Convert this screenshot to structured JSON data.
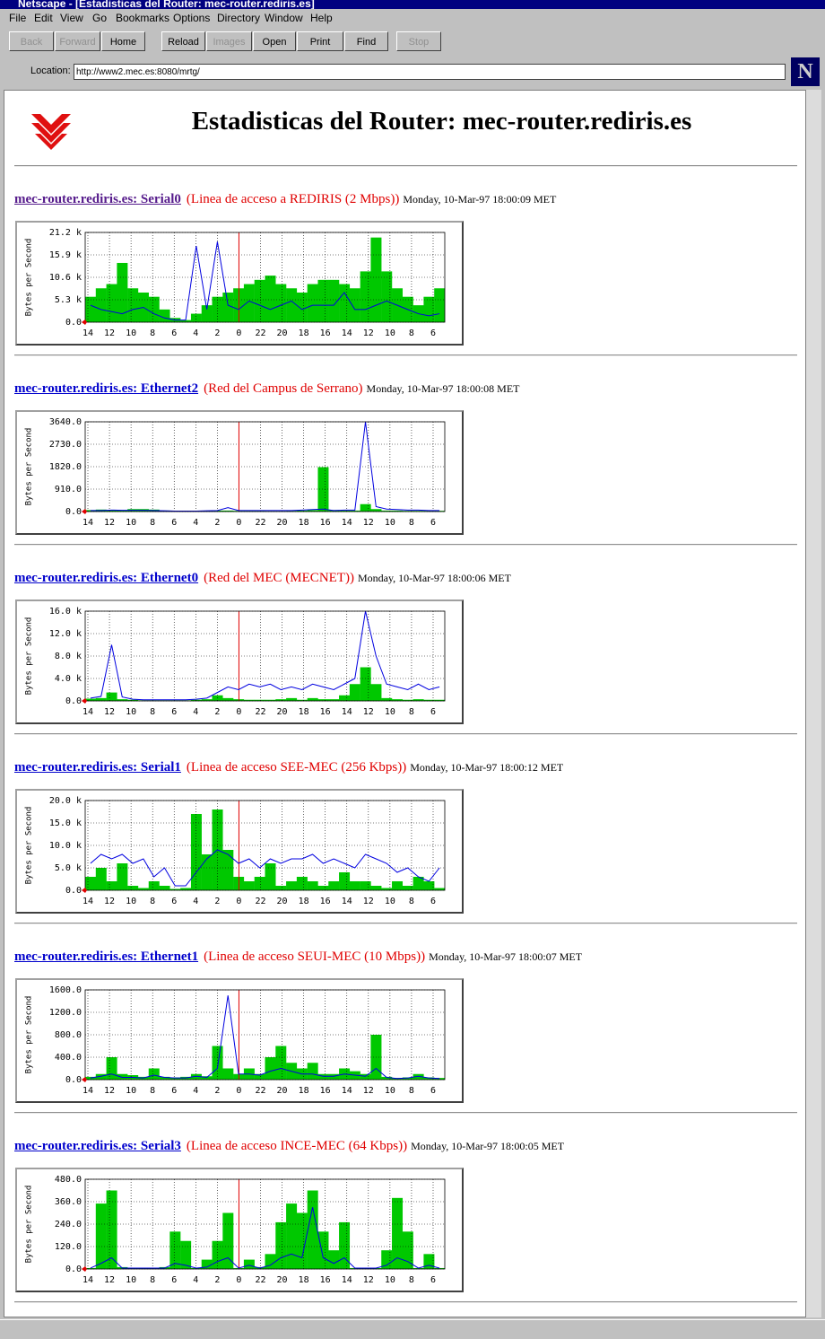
{
  "window": {
    "title": "Netscape - [Estadisticas del Router: mec-router.rediris.es]"
  },
  "menu": [
    "File",
    "Edit",
    "View",
    "Go",
    "Bookmarks",
    "Options",
    "Directory",
    "Window",
    "Help"
  ],
  "toolbar": [
    {
      "label": "Back",
      "enabled": false
    },
    {
      "label": "Forward",
      "enabled": false
    },
    {
      "label": "Home",
      "enabled": true
    },
    {
      "label": "Reload",
      "enabled": true
    },
    {
      "label": "Images",
      "enabled": false
    },
    {
      "label": "Open",
      "enabled": true
    },
    {
      "label": "Print",
      "enabled": true
    },
    {
      "label": "Find",
      "enabled": true
    },
    {
      "label": "Stop",
      "enabled": false
    }
  ],
  "location": {
    "label": "Location:",
    "url": "http://www2.mec.es:8080/mrtg/"
  },
  "page": {
    "heading": "Estadisticas del Router: mec-router.rediris.es",
    "y_axis_label": "Bytes per Second",
    "x_labels": [
      "14",
      "12",
      "10",
      "8",
      "6",
      "4",
      "2",
      "0",
      "22",
      "20",
      "18",
      "16",
      "14",
      "12",
      "10",
      "8",
      "6"
    ]
  },
  "chart_data": [
    {
      "type": "bar",
      "title": "mec-router.rediris.es: Serial0",
      "subtitle": "(Linea de acceso a REDIRIS (2 Mbps))",
      "date": "Monday, 10-Mar-97 18:00:09 MET",
      "ylim": [
        0,
        21200
      ],
      "yticks": [
        {
          "value": 0,
          "label": "0.0"
        },
        {
          "value": 5300,
          "label": "5.3 k"
        },
        {
          "value": 10600,
          "label": "10.6 k"
        },
        {
          "value": 15900,
          "label": "15.9 k"
        },
        {
          "value": 21200,
          "label": "21.2 k"
        }
      ],
      "grid": true,
      "series": [
        {
          "kind": "bar",
          "color": "#00c800",
          "values": [
            6000,
            8000,
            9000,
            14000,
            8000,
            7000,
            6000,
            3000,
            1000,
            500,
            2000,
            4000,
            6000,
            7000,
            8000,
            9000,
            10000,
            11000,
            9000,
            8000,
            7000,
            9000,
            10000,
            10000,
            9000,
            8000,
            12000,
            20000,
            12000,
            8000,
            6000,
            4000,
            6000,
            8000
          ]
        },
        {
          "kind": "line",
          "color": "#0000e0",
          "values": [
            4000,
            3000,
            2500,
            2000,
            3000,
            3500,
            2000,
            1000,
            500,
            500,
            18000,
            3000,
            19000,
            4000,
            3000,
            5000,
            4000,
            3000,
            4000,
            5000,
            3000,
            4000,
            4000,
            4000,
            7000,
            3000,
            3000,
            4000,
            5000,
            4000,
            3000,
            2000,
            1500,
            2000
          ]
        }
      ]
    },
    {
      "type": "bar",
      "title": "mec-router.rediris.es: Ethernet2",
      "subtitle": "(Red del Campus de Serrano)",
      "date": "Monday, 10-Mar-97 18:00:08 MET",
      "ylim": [
        0,
        3640
      ],
      "yticks": [
        {
          "value": 0,
          "label": "0.0"
        },
        {
          "value": 910,
          "label": "910.0"
        },
        {
          "value": 1820,
          "label": "1820.0"
        },
        {
          "value": 2730,
          "label": "2730.0"
        },
        {
          "value": 3640,
          "label": "3640.0"
        }
      ],
      "grid": true,
      "series": [
        {
          "kind": "bar",
          "color": "#00c800",
          "values": [
            60,
            80,
            60,
            60,
            100,
            100,
            80,
            40,
            30,
            20,
            20,
            30,
            40,
            40,
            30,
            30,
            30,
            20,
            20,
            30,
            40,
            60,
            1800,
            60,
            40,
            40,
            300,
            100,
            40,
            40,
            30,
            30,
            30,
            30
          ]
        },
        {
          "kind": "line",
          "color": "#0000e0",
          "values": [
            40,
            40,
            60,
            50,
            50,
            50,
            40,
            30,
            20,
            20,
            20,
            30,
            40,
            160,
            40,
            40,
            40,
            40,
            40,
            40,
            60,
            80,
            100,
            40,
            60,
            60,
            3640,
            200,
            100,
            80,
            60,
            60,
            40,
            40
          ]
        }
      ]
    },
    {
      "type": "bar",
      "title": "mec-router.rediris.es: Ethernet0",
      "subtitle": "(Red del MEC (MECNET))",
      "date": "Monday, 10-Mar-97 18:00:06 MET",
      "ylim": [
        0,
        16000
      ],
      "yticks": [
        {
          "value": 0,
          "label": "0.0"
        },
        {
          "value": 4000,
          "label": "4.0 k"
        },
        {
          "value": 8000,
          "label": "8.0 k"
        },
        {
          "value": 12000,
          "label": "12.0 k"
        },
        {
          "value": 16000,
          "label": "16.0 k"
        }
      ],
      "grid": true,
      "series": [
        {
          "kind": "bar",
          "color": "#00c800",
          "values": [
            400,
            500,
            1500,
            300,
            200,
            100,
            100,
            100,
            100,
            100,
            200,
            300,
            1000,
            500,
            300,
            200,
            200,
            200,
            300,
            500,
            200,
            500,
            300,
            300,
            1000,
            3000,
            6000,
            3000,
            500,
            300,
            200,
            300,
            200,
            200
          ]
        },
        {
          "kind": "line",
          "color": "#0000e0",
          "values": [
            500,
            800,
            10000,
            700,
            300,
            200,
            200,
            200,
            200,
            200,
            300,
            500,
            1500,
            2500,
            2000,
            3000,
            2500,
            3000,
            2000,
            2500,
            2000,
            3000,
            2500,
            2000,
            3000,
            4000,
            16000,
            8000,
            3000,
            2500,
            2000,
            3000,
            2000,
            2500
          ]
        }
      ]
    },
    {
      "type": "bar",
      "title": "mec-router.rediris.es: Serial1",
      "subtitle": "(Linea de acceso SEE-MEC (256 Kbps))",
      "date": "Monday, 10-Mar-97 18:00:12 MET",
      "ylim": [
        0,
        20000
      ],
      "yticks": [
        {
          "value": 0,
          "label": "0.0"
        },
        {
          "value": 5000,
          "label": "5.0 k"
        },
        {
          "value": 10000,
          "label": "10.0 k"
        },
        {
          "value": 15000,
          "label": "15.0 k"
        },
        {
          "value": 20000,
          "label": "20.0 k"
        }
      ],
      "grid": true,
      "series": [
        {
          "kind": "bar",
          "color": "#00c800",
          "values": [
            3000,
            5000,
            2000,
            6000,
            1000,
            500,
            2000,
            1000,
            300,
            500,
            17000,
            8000,
            18000,
            9000,
            3000,
            2000,
            3000,
            6000,
            1000,
            2000,
            3000,
            2000,
            1000,
            2000,
            4000,
            2000,
            2000,
            1000,
            500,
            2000,
            1000,
            3000,
            2000,
            500
          ]
        },
        {
          "kind": "line",
          "color": "#0000e0",
          "values": [
            6000,
            8000,
            7000,
            8000,
            6000,
            7000,
            3000,
            5000,
            1000,
            1000,
            4000,
            7000,
            9000,
            8000,
            6000,
            7000,
            5000,
            7000,
            6000,
            7000,
            7000,
            8000,
            6000,
            7000,
            6000,
            5000,
            8000,
            7000,
            6000,
            4000,
            5000,
            3000,
            2000,
            5000
          ]
        }
      ]
    },
    {
      "type": "bar",
      "title": "mec-router.rediris.es: Ethernet1",
      "subtitle": "(Linea de acceso SEUI-MEC (10 Mbps))",
      "date": "Monday, 10-Mar-97 18:00:07 MET",
      "ylim": [
        0,
        1600
      ],
      "yticks": [
        {
          "value": 0,
          "label": "0.0"
        },
        {
          "value": 400,
          "label": "400.0"
        },
        {
          "value": 800,
          "label": "800.0"
        },
        {
          "value": 1200,
          "label": "1200.0"
        },
        {
          "value": 1600,
          "label": "1600.0"
        }
      ],
      "grid": true,
      "series": [
        {
          "kind": "bar",
          "color": "#00c800",
          "values": [
            50,
            100,
            400,
            100,
            80,
            50,
            200,
            50,
            40,
            50,
            100,
            60,
            600,
            200,
            100,
            200,
            100,
            400,
            600,
            300,
            200,
            300,
            100,
            100,
            200,
            150,
            100,
            800,
            50,
            30,
            40,
            100,
            40,
            30
          ]
        },
        {
          "kind": "line",
          "color": "#0000e0",
          "values": [
            30,
            60,
            100,
            40,
            40,
            30,
            80,
            40,
            30,
            30,
            60,
            40,
            200,
            1500,
            100,
            100,
            80,
            150,
            200,
            150,
            100,
            100,
            60,
            60,
            100,
            80,
            60,
            200,
            40,
            20,
            30,
            60,
            30,
            20
          ]
        }
      ]
    },
    {
      "type": "bar",
      "title": "mec-router.rediris.es: Serial3",
      "subtitle": "(Linea de acceso INCE-MEC (64 Kbps))",
      "date": "Monday, 10-Mar-97 18:00:05 MET",
      "ylim": [
        0,
        480
      ],
      "yticks": [
        {
          "value": 0,
          "label": "0.0"
        },
        {
          "value": 120,
          "label": "120.0"
        },
        {
          "value": 240,
          "label": "240.0"
        },
        {
          "value": 360,
          "label": "360.0"
        },
        {
          "value": 480,
          "label": "480.0"
        }
      ],
      "grid": true,
      "series": [
        {
          "kind": "bar",
          "color": "#00c800",
          "values": [
            5,
            350,
            420,
            10,
            5,
            5,
            5,
            10,
            200,
            150,
            5,
            50,
            150,
            300,
            5,
            50,
            10,
            80,
            250,
            350,
            300,
            420,
            200,
            100,
            250,
            5,
            5,
            5,
            100,
            380,
            200,
            5,
            80,
            5
          ]
        },
        {
          "kind": "line",
          "color": "#0000e0",
          "values": [
            5,
            30,
            60,
            5,
            5,
            5,
            5,
            5,
            30,
            20,
            5,
            10,
            40,
            60,
            5,
            20,
            5,
            20,
            60,
            80,
            60,
            330,
            60,
            30,
            60,
            5,
            5,
            5,
            20,
            60,
            40,
            5,
            20,
            5
          ]
        }
      ]
    }
  ]
}
